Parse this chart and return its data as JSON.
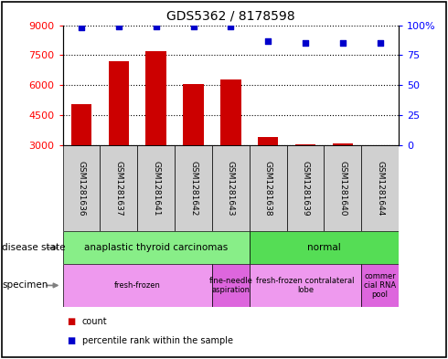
{
  "title": "GDS5362 / 8178598",
  "samples": [
    "GSM1281636",
    "GSM1281637",
    "GSM1281641",
    "GSM1281642",
    "GSM1281643",
    "GSM1281638",
    "GSM1281639",
    "GSM1281640",
    "GSM1281644"
  ],
  "counts": [
    5050,
    7200,
    7700,
    6050,
    6300,
    3420,
    3060,
    3110,
    3010
  ],
  "percentiles": [
    98,
    99,
    99,
    99,
    99,
    87,
    85,
    85,
    85
  ],
  "ylim_left": [
    3000,
    9000
  ],
  "ylim_right": [
    0,
    100
  ],
  "yticks_left": [
    3000,
    4500,
    6000,
    7500,
    9000
  ],
  "yticks_right": [
    0,
    25,
    50,
    75,
    100
  ],
  "bar_color": "#cc0000",
  "dot_color": "#0000cc",
  "bar_width": 0.55,
  "disease_state_groups": [
    {
      "label": "anaplastic thyroid carcinomas",
      "start": 0,
      "end": 5,
      "color": "#88ee88"
    },
    {
      "label": "normal",
      "start": 5,
      "end": 9,
      "color": "#55dd55"
    }
  ],
  "specimen_groups": [
    {
      "label": "fresh-frozen",
      "start": 0,
      "end": 4,
      "color": "#ee99ee"
    },
    {
      "label": "fine-needle\naspiration",
      "start": 4,
      "end": 5,
      "color": "#dd66dd"
    },
    {
      "label": "fresh-frozen contralateral\nlobe",
      "start": 5,
      "end": 8,
      "color": "#ee99ee"
    },
    {
      "label": "commer\ncial RNA\npool",
      "start": 8,
      "end": 9,
      "color": "#dd66dd"
    }
  ],
  "axis_bg": "#e0e0e0",
  "plot_bg": "#ffffff",
  "legend_count_color": "#cc0000",
  "legend_pct_color": "#0000cc",
  "label_area_color": "#d0d0d0"
}
